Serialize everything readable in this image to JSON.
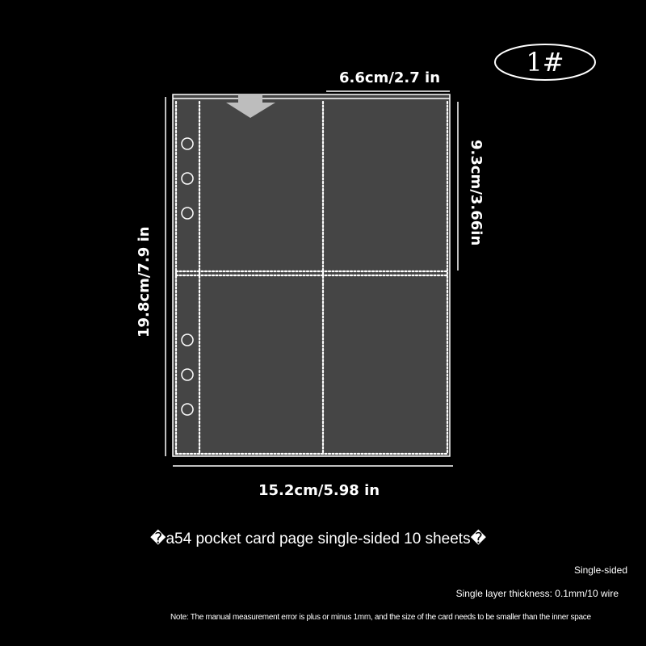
{
  "badge": "1#",
  "dimensions": {
    "pocket_width": "6.6cm/2.7 in",
    "pocket_height": "9.3cm/3.66in",
    "sheet_height": "19.8cm/7.9 in",
    "sheet_width": "15.2cm/5.98 in"
  },
  "title": "�a54 pocket card page single-sided 10 sheets�",
  "specs": {
    "sides": "Single-sided",
    "thickness": "Single layer thickness: 0.1mm/10 wire"
  },
  "note": "Note: The manual measurement error is plus or minus 1mm, and the size of the card needs to be smaller than the inner space",
  "colors": {
    "background": "#000000",
    "sheet": "#454545",
    "stitch": "#ffffff",
    "arrow": "#bdbdbd"
  }
}
